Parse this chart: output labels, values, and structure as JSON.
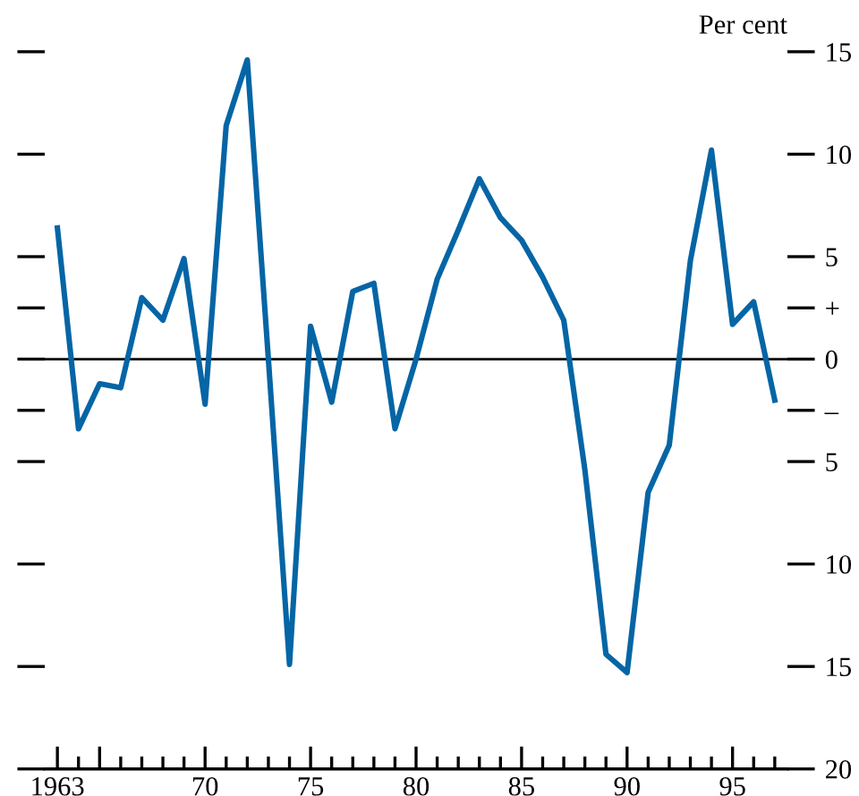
{
  "chart_data": {
    "type": "line",
    "ylabel": "Per cent",
    "x": [
      1963,
      1964,
      1965,
      1966,
      1967,
      1968,
      1969,
      1970,
      1971,
      1972,
      1973,
      1974,
      1975,
      1976,
      1977,
      1978,
      1979,
      1980,
      1981,
      1982,
      1983,
      1984,
      1985,
      1986,
      1987,
      1988,
      1989,
      1990,
      1991,
      1992,
      1993,
      1994,
      1995,
      1996,
      1997
    ],
    "series": [
      {
        "color": "#0565a5",
        "values": [
          6.4,
          -3.4,
          -1.2,
          -1.4,
          3.0,
          1.9,
          4.9,
          -2.2,
          11.4,
          14.6,
          0,
          -14.9,
          1.6,
          -2.1,
          3.3,
          3.7,
          -3.4,
          0,
          3.9,
          6.3,
          8.8,
          6.9,
          5.8,
          4.0,
          1.9,
          -5.4,
          -14.4,
          -15.3,
          -6.5,
          -4.2,
          4.8,
          10.2,
          1.7,
          2.8,
          -2.0
        ]
      }
    ],
    "xlim": [
      1962.4,
      1997.6
    ],
    "xticks": [
      {
        "value": 1963,
        "label": "1963"
      },
      {
        "value": 1964,
        "label": null
      },
      {
        "value": 1965,
        "label": null
      },
      {
        "value": 1966,
        "label": null
      },
      {
        "value": 1967,
        "label": null
      },
      {
        "value": 1968,
        "label": null
      },
      {
        "value": 1969,
        "label": null
      },
      {
        "value": 1970,
        "label": "70"
      },
      {
        "value": 1971,
        "label": null
      },
      {
        "value": 1972,
        "label": null
      },
      {
        "value": 1973,
        "label": null
      },
      {
        "value": 1974,
        "label": null
      },
      {
        "value": 1975,
        "label": "75"
      },
      {
        "value": 1976,
        "label": null
      },
      {
        "value": 1977,
        "label": null
      },
      {
        "value": 1978,
        "label": null
      },
      {
        "value": 1979,
        "label": null
      },
      {
        "value": 1980,
        "label": "80"
      },
      {
        "value": 1981,
        "label": null
      },
      {
        "value": 1982,
        "label": null
      },
      {
        "value": 1983,
        "label": null
      },
      {
        "value": 1984,
        "label": null
      },
      {
        "value": 1985,
        "label": "85"
      },
      {
        "value": 1986,
        "label": null
      },
      {
        "value": 1987,
        "label": null
      },
      {
        "value": 1988,
        "label": null
      },
      {
        "value": 1989,
        "label": null
      },
      {
        "value": 1990,
        "label": "90"
      },
      {
        "value": 1991,
        "label": null
      },
      {
        "value": 1992,
        "label": null
      },
      {
        "value": 1993,
        "label": null
      },
      {
        "value": 1994,
        "label": null
      },
      {
        "value": 1995,
        "label": "95"
      },
      {
        "value": 1996,
        "label": null
      },
      {
        "value": 1997,
        "label": null
      }
    ],
    "ylim": [
      -20,
      15
    ],
    "yticks": [
      15,
      10,
      5,
      {
        "value": 2.5,
        "label": "+"
      },
      0,
      {
        "value": -2.5,
        "label": "–"
      },
      {
        "value": -5,
        "label": "5"
      },
      {
        "value": -10,
        "label": "10"
      },
      {
        "value": -15,
        "label": "15"
      },
      {
        "value": -20,
        "label": "20"
      }
    ],
    "ref_lines": [
      {
        "axis": "y",
        "value": 0,
        "color": "#000000"
      }
    ],
    "grid": false,
    "marker": "none",
    "line_style": "solid"
  }
}
